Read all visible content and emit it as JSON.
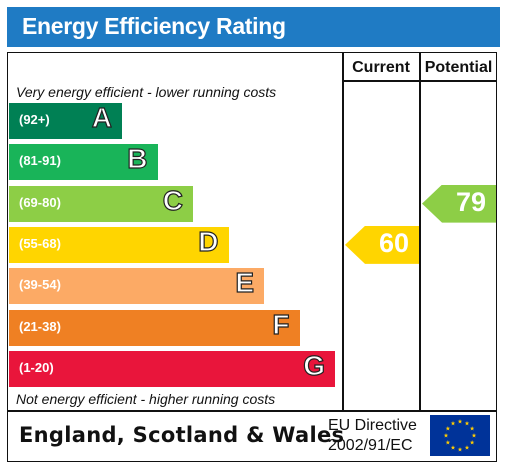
{
  "title": "Energy Efficiency Rating",
  "columns": {
    "current": "Current",
    "potential": "Potential"
  },
  "notes": {
    "top": "Very energy efficient - lower running costs",
    "bottom": "Not energy efficient - higher running costs"
  },
  "chart_data": {
    "type": "bar",
    "bands": [
      {
        "letter": "A",
        "range": "(92+)",
        "color": "#008054"
      },
      {
        "letter": "B",
        "range": "(81-91)",
        "color": "#19b459"
      },
      {
        "letter": "C",
        "range": "(69-80)",
        "color": "#8dce46"
      },
      {
        "letter": "D",
        "range": "(55-68)",
        "color": "#ffd500"
      },
      {
        "letter": "E",
        "range": "(39-54)",
        "color": "#fcaa65"
      },
      {
        "letter": "F",
        "range": "(21-38)",
        "color": "#ef8023"
      },
      {
        "letter": "G",
        "range": "(1-20)",
        "color": "#e9153b"
      }
    ],
    "ratings": {
      "current": {
        "value": 60,
        "label": "60",
        "color": "#ffd500"
      },
      "potential": {
        "value": 79,
        "label": "79",
        "color": "#8dce46"
      }
    }
  },
  "footer": {
    "region": "England, Scotland & Wales",
    "directive_line1": "EU Directive",
    "directive_line2": "2002/91/EC"
  },
  "eu_flag": {
    "icon": "eu-flag-icon",
    "background": "#003399",
    "stars": "#ffcc00"
  }
}
